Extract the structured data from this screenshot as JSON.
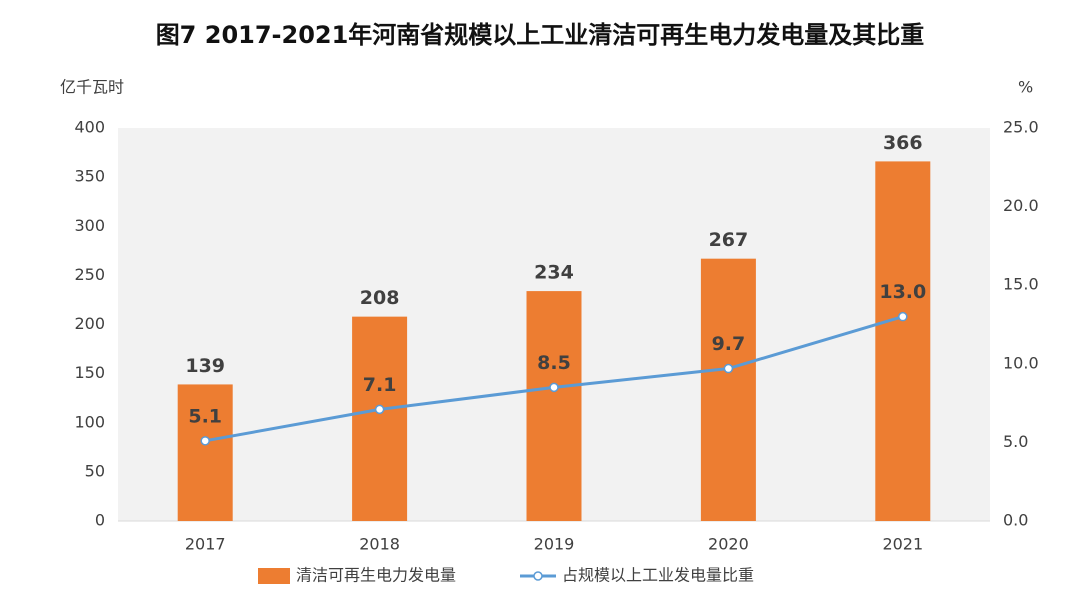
{
  "chart_data": {
    "type": "combo",
    "title": "图7  2017-2021年河南省规模以上工业清洁可再生电力发电量及其比重",
    "y_label": "亿千瓦时",
    "y2_label": "%",
    "categories": [
      "2017",
      "2018",
      "2019",
      "2020",
      "2021"
    ],
    "series": [
      {
        "name": "清洁可再生电力发电量",
        "type": "bar",
        "color": "#ed7d31",
        "values": [
          139,
          208,
          234,
          267,
          366
        ]
      },
      {
        "name": "占规模以上工业发电量比重",
        "type": "line",
        "axis": "y2",
        "color": "#5b9bd5",
        "values": [
          5.1,
          7.1,
          8.5,
          9.7,
          13.0
        ],
        "value_labels": [
          "5.1",
          "7.1",
          "8.5",
          "9.7",
          "13.0"
        ]
      }
    ],
    "ylim": [
      0,
      400
    ],
    "yticks": [
      0,
      50,
      100,
      150,
      200,
      250,
      300,
      350,
      400
    ],
    "y2lim": [
      0,
      25
    ],
    "y2ticks": [
      {
        "value": 0,
        "label": "0.0"
      },
      {
        "value": 5,
        "label": "5.0"
      },
      {
        "value": 10,
        "label": "10.0"
      },
      {
        "value": 15,
        "label": "15.0"
      },
      {
        "value": 20,
        "label": "20.0"
      },
      {
        "value": 25,
        "label": "25.0"
      }
    ],
    "grid": false,
    "legend": "bottom"
  }
}
